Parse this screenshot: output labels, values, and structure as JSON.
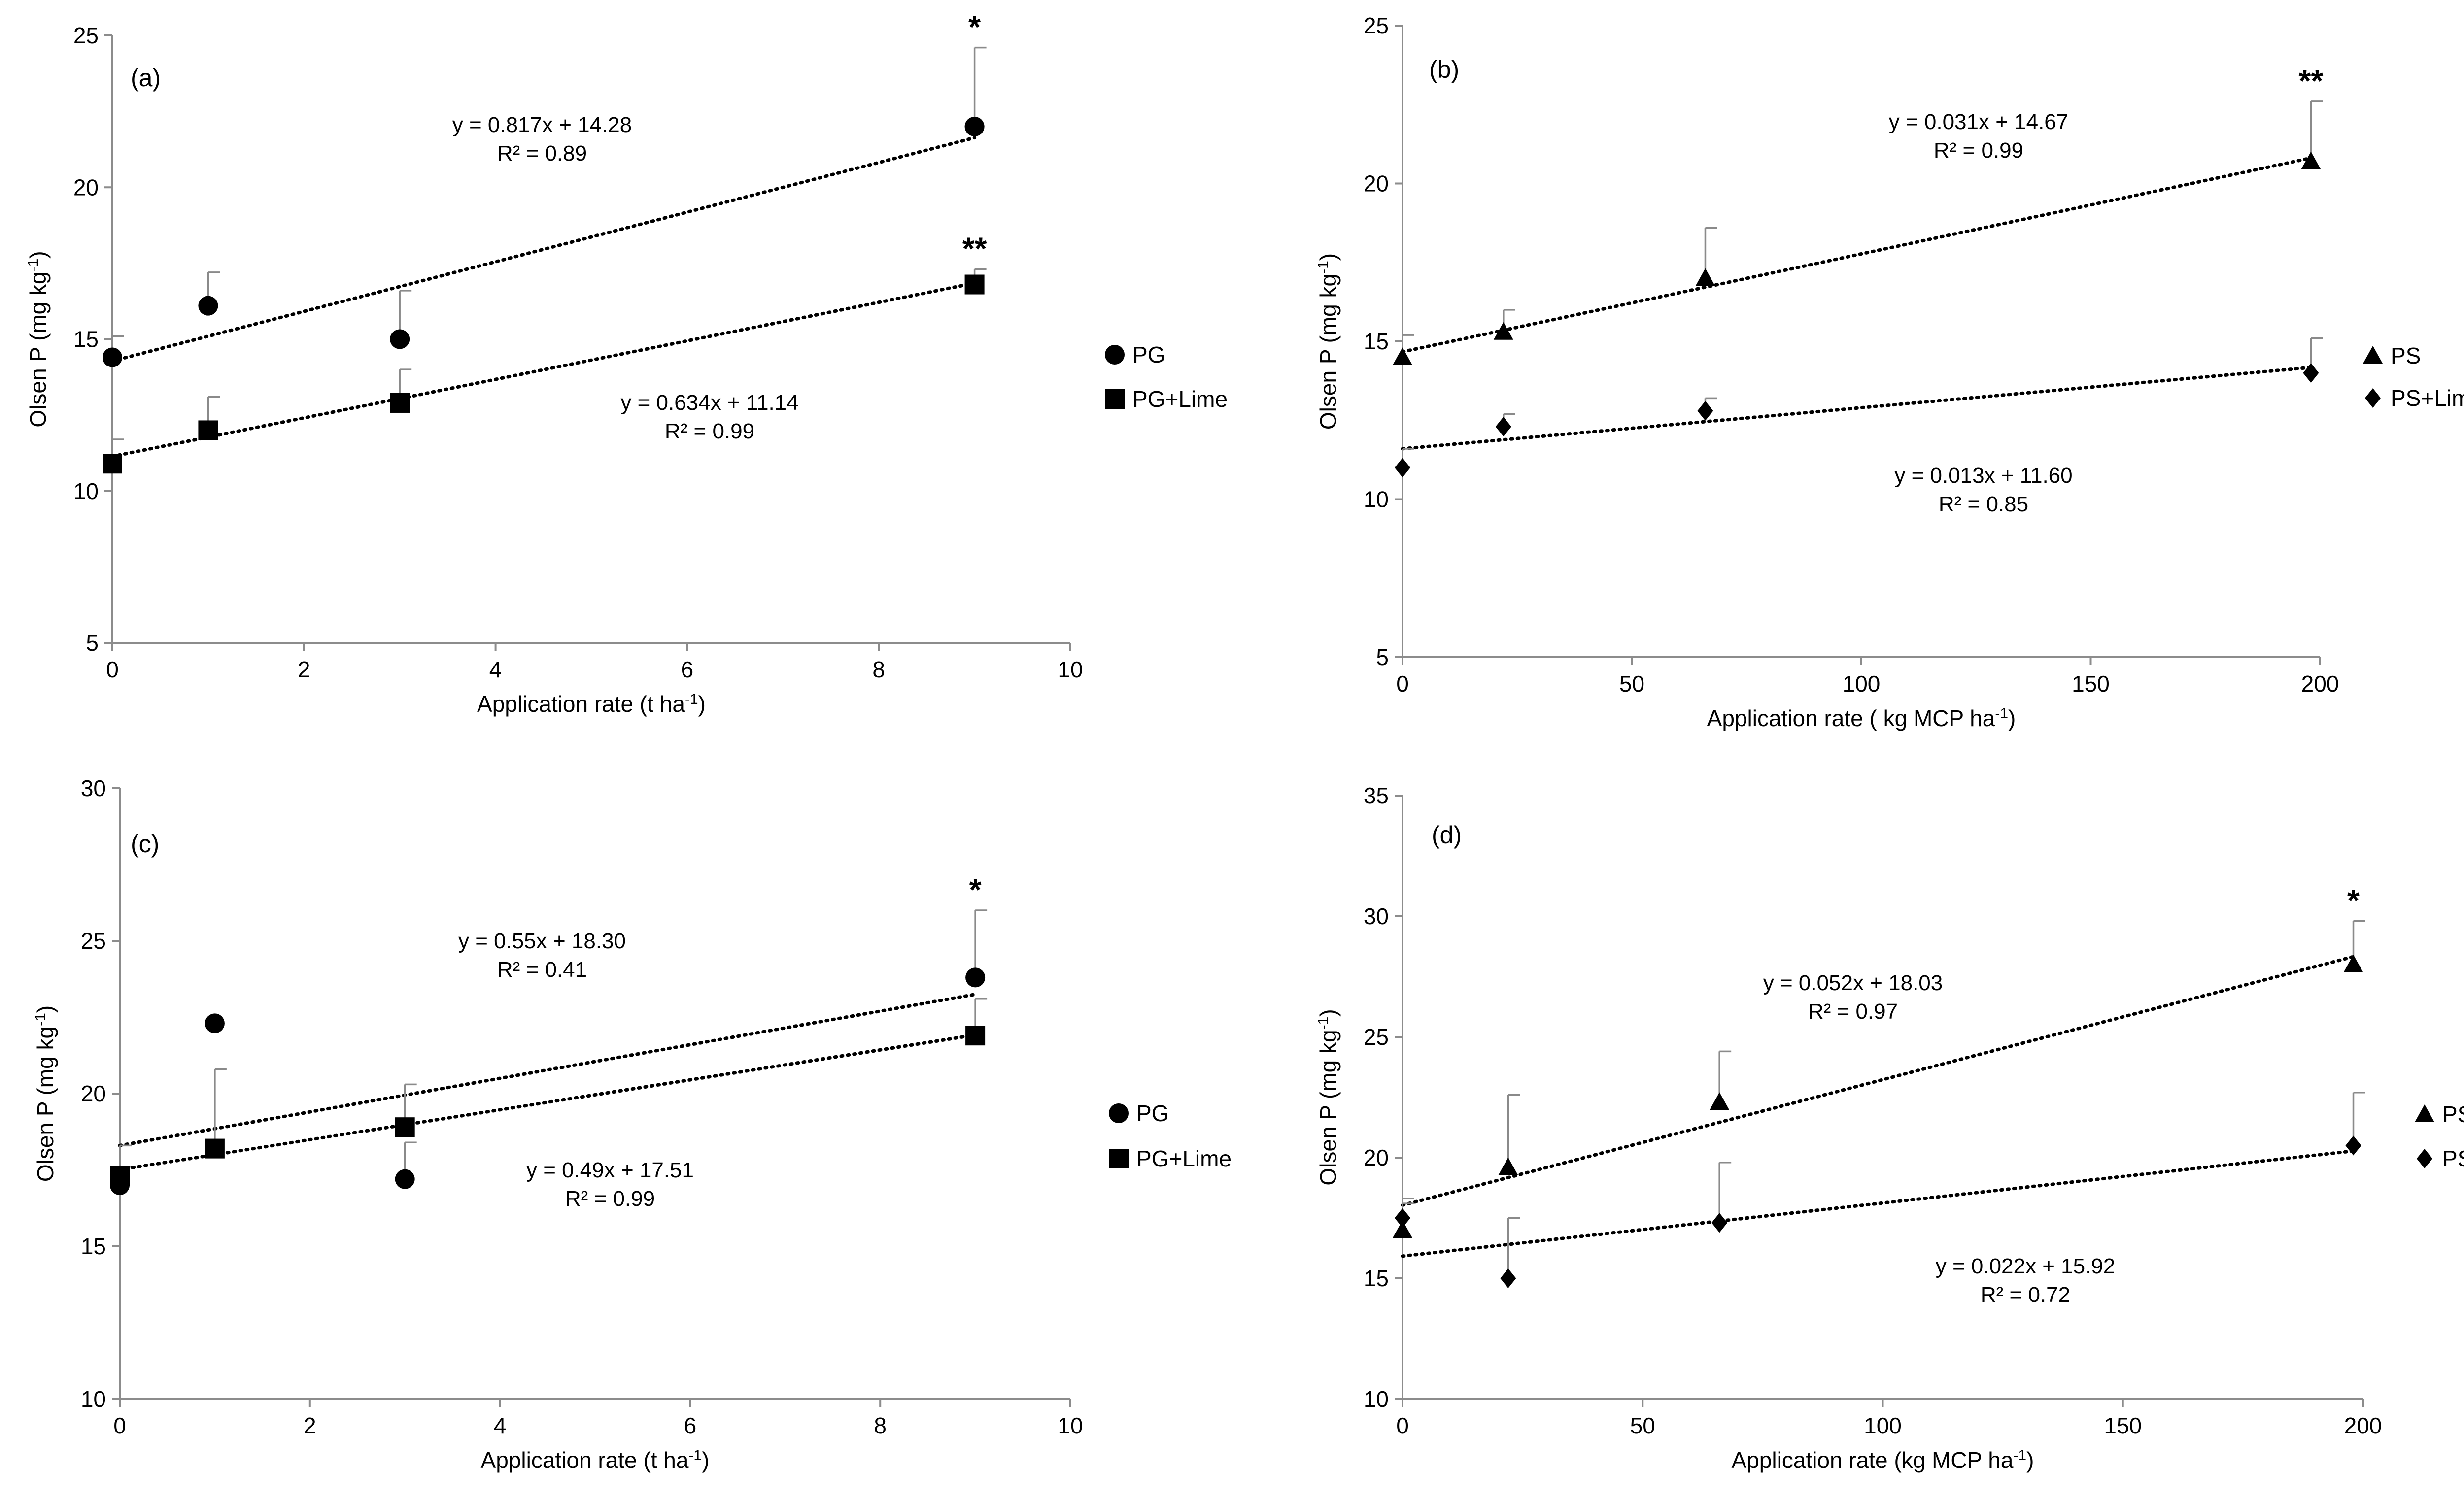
{
  "chart_data": [
    {
      "id": "a",
      "type": "scatter",
      "panel_label": "(a)",
      "xlabel": "Application rate (t ha",
      "xlabel_sup": "-1",
      "xlabel_end": ")",
      "ylabel": "Olsen P (mg kg",
      "ylabel_sup": "-1",
      "ylabel_end": ")",
      "xlim": [
        0,
        10
      ],
      "ylim": [
        5,
        25
      ],
      "xticks": [
        "0",
        "2",
        "4",
        "6",
        "8",
        "10"
      ],
      "yticks": [
        "5",
        "10",
        "15",
        "20",
        "25"
      ],
      "legend_position": "right",
      "series": [
        {
          "name": "PG",
          "marker": "circle",
          "x": [
            0,
            1,
            3,
            9
          ],
          "y": [
            14.4,
            16.1,
            15.0,
            22.0
          ],
          "error": [
            0.7,
            1.1,
            1.6,
            2.6
          ],
          "trend": {
            "slope": 0.817,
            "intercept": 14.28
          },
          "equation": "y = 0.817x + 14.28",
          "r2": "R² = 0.89",
          "significance": "*"
        },
        {
          "name": "PG+Lime",
          "marker": "square",
          "x": [
            0,
            1,
            3,
            9
          ],
          "y": [
            10.9,
            12.0,
            12.9,
            16.8
          ],
          "error": [
            0.8,
            1.1,
            1.1,
            0.5
          ],
          "trend": {
            "slope": 0.634,
            "intercept": 11.14
          },
          "equation": "y = 0.634x + 11.14",
          "r2": "R² = 0.99",
          "significance": "**"
        }
      ]
    },
    {
      "id": "b",
      "type": "scatter",
      "panel_label": "(b)",
      "xlabel": "Application rate ( kg MCP ha",
      "xlabel_sup": "-1",
      "xlabel_end": ")",
      "ylabel": "Olsen P (mg kg",
      "ylabel_sup": "-1",
      "ylabel_end": ")",
      "xlim": [
        0,
        200
      ],
      "ylim": [
        5,
        25
      ],
      "xticks": [
        "0",
        "50",
        "100",
        "150",
        "200"
      ],
      "yticks": [
        "5",
        "10",
        "15",
        "20",
        "25"
      ],
      "legend_position": "right",
      "series": [
        {
          "name": "PS",
          "marker": "triangle",
          "x": [
            0,
            22,
            66,
            198
          ],
          "y": [
            14.5,
            15.3,
            17.0,
            20.7
          ],
          "error": [
            0.7,
            0.7,
            1.6,
            1.9
          ],
          "trend": {
            "slope": 0.031,
            "intercept": 14.67
          },
          "equation": "y = 0.031x + 14.67",
          "r2": "R² = 0.99",
          "significance": "**"
        },
        {
          "name": "PS+Lime",
          "marker": "diamond",
          "x": [
            0,
            22,
            66,
            198
          ],
          "y": [
            11.0,
            12.3,
            12.8,
            14.0
          ],
          "error": [
            0.6,
            0.4,
            0.4,
            1.1
          ],
          "trend": {
            "slope": 0.013,
            "intercept": 11.6
          },
          "equation": "y = 0.013x + 11.60",
          "r2": "R² = 0.85",
          "significance": ""
        }
      ]
    },
    {
      "id": "c",
      "type": "scatter",
      "panel_label": "(c)",
      "xlabel": "Application rate (t ha",
      "xlabel_sup": "-1",
      "xlabel_end": ")",
      "ylabel": "Olsen P (mg kg",
      "ylabel_sup": "-1",
      "ylabel_end": ")",
      "xlim": [
        0,
        10
      ],
      "ylim": [
        10,
        30
      ],
      "xticks": [
        "0",
        "2",
        "4",
        "6",
        "8",
        "10"
      ],
      "yticks": [
        "10",
        "15",
        "20",
        "25",
        "30"
      ],
      "legend_position": "right",
      "series": [
        {
          "name": "PG",
          "marker": "circle",
          "x": [
            0,
            1,
            3,
            9
          ],
          "y": [
            17.0,
            22.3,
            17.2,
            23.8
          ],
          "error": [
            0.6,
            0,
            1.2,
            2.2
          ],
          "trend": {
            "slope": 0.55,
            "intercept": 18.3
          },
          "equation": "y = 0.55x + 18.30",
          "r2": "R² = 0.41",
          "significance": "*"
        },
        {
          "name": "PG+Lime",
          "marker": "square",
          "x": [
            0,
            1,
            3,
            9
          ],
          "y": [
            17.3,
            18.2,
            18.9,
            21.9
          ],
          "error": [
            1.0,
            2.6,
            1.4,
            1.2
          ],
          "trend": {
            "slope": 0.49,
            "intercept": 17.51
          },
          "equation": "y = 0.49x + 17.51",
          "r2": "R² = 0.99",
          "significance": ""
        }
      ]
    },
    {
      "id": "d",
      "type": "scatter",
      "panel_label": "(d)",
      "xlabel": "Application rate (kg MCP ha",
      "xlabel_sup": "-1",
      "xlabel_end": ")",
      "ylabel": "Olsen P (mg kg",
      "ylabel_sup": "-1",
      "ylabel_end": ")",
      "xlim": [
        0,
        200
      ],
      "ylim": [
        10,
        35
      ],
      "xticks": [
        "0",
        "50",
        "100",
        "150",
        "200"
      ],
      "yticks": [
        "10",
        "15",
        "20",
        "25",
        "30",
        "35"
      ],
      "legend_position": "right",
      "series": [
        {
          "name": "PS",
          "marker": "triangle",
          "x": [
            0,
            22,
            66,
            198
          ],
          "y": [
            17.0,
            19.6,
            22.3,
            28.0
          ],
          "error": [
            1.3,
            3.0,
            2.1,
            1.8
          ],
          "trend": {
            "slope": 0.052,
            "intercept": 18.03
          },
          "equation": "y = 0.052x + 18.03",
          "r2": "R² = 0.97",
          "significance": "*"
        },
        {
          "name": "PS+Lime",
          "marker": "diamond",
          "x": [
            0,
            22,
            66,
            198
          ],
          "y": [
            17.5,
            15.0,
            17.3,
            20.5
          ],
          "error": [
            0.6,
            2.5,
            2.5,
            2.2
          ],
          "trend": {
            "slope": 0.022,
            "intercept": 15.92
          },
          "equation": "y = 0.022x + 15.92",
          "r2": "R² = 0.72",
          "significance": ""
        }
      ]
    }
  ]
}
